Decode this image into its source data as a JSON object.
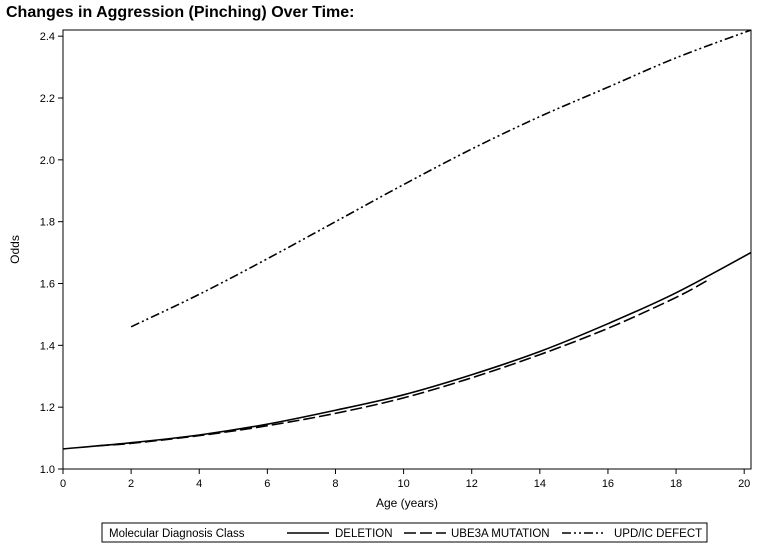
{
  "header": {
    "title": "Changes in Aggression (Pinching) Over Time:"
  },
  "chart_data": {
    "type": "line",
    "title": "Changes in Aggression (Pinching) Over Time:",
    "xlabel": "Age (years)",
    "ylabel": "Odds",
    "xlim": [
      0,
      20.2
    ],
    "ylim": [
      1.0,
      2.42
    ],
    "xticks": [
      0,
      2,
      4,
      6,
      8,
      10,
      12,
      14,
      16,
      18,
      20
    ],
    "yticks": [
      1.0,
      1.2,
      1.4,
      1.6,
      1.8,
      2.0,
      2.2,
      2.4
    ],
    "ytick_labels": [
      "1.0",
      "1.2",
      "1.4",
      "1.6",
      "1.8",
      "2.0",
      "2.2",
      "2.4"
    ],
    "grid": false,
    "legend": {
      "title": "Molecular Diagnosis Class",
      "placement": "bottom"
    },
    "series": [
      {
        "name": "DELETION",
        "style": "solid",
        "x": [
          0,
          2,
          4,
          6,
          8,
          10,
          12,
          14,
          16,
          18,
          20.2
        ],
        "y": [
          1.065,
          1.085,
          1.11,
          1.145,
          1.19,
          1.24,
          1.305,
          1.38,
          1.47,
          1.57,
          1.7
        ]
      },
      {
        "name": "UBE3A MUTATION",
        "style": "dashed",
        "x": [
          1,
          2,
          4,
          6,
          8,
          10,
          12,
          14,
          16,
          18,
          19
        ],
        "y": [
          1.075,
          1.083,
          1.108,
          1.14,
          1.18,
          1.23,
          1.295,
          1.37,
          1.455,
          1.555,
          1.615
        ]
      },
      {
        "name": "UPD/IC DEFECT",
        "style": "dash-dot-dot",
        "x": [
          2,
          4,
          6,
          8,
          10,
          12,
          14,
          16,
          18,
          20.2
        ],
        "y": [
          1.46,
          1.565,
          1.68,
          1.8,
          1.92,
          2.035,
          2.14,
          2.235,
          2.33,
          2.42
        ]
      }
    ]
  }
}
